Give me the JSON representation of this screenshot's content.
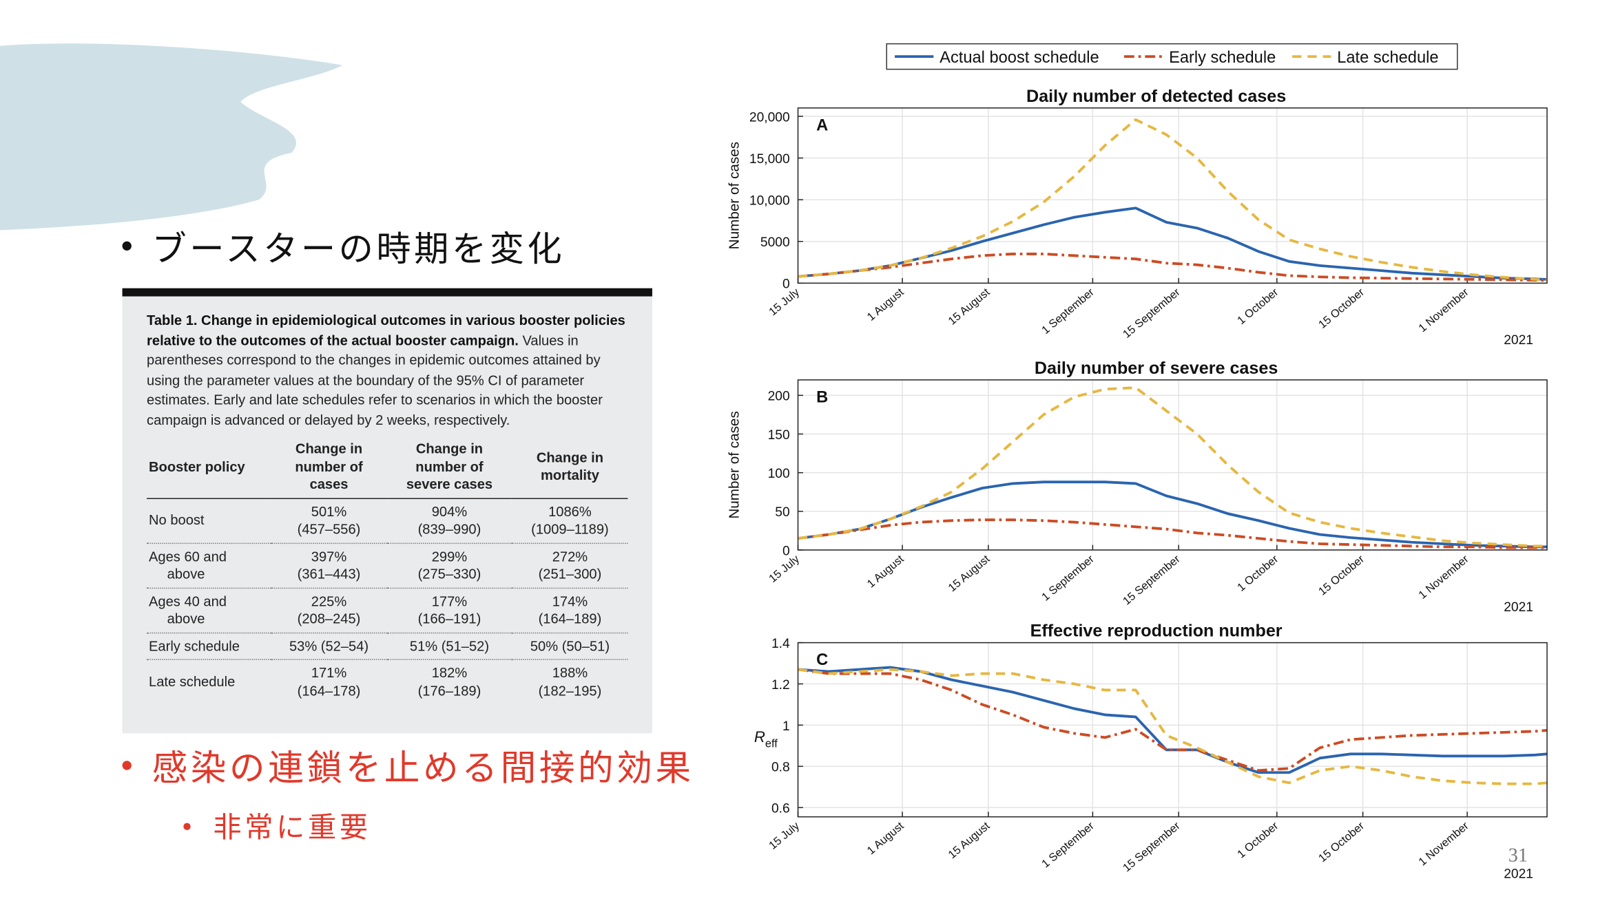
{
  "bullets": [
    "ブースターの時期を変化",
    "感染の連鎖を止める間接的効果",
    "非常に重要"
  ],
  "page_number": "31",
  "table": {
    "caption_bold": "Table 1. Change in epidemiological outcomes in various booster policies relative to the outcomes of the actual booster campaign.",
    "caption": "Values in parentheses correspond to the changes in epidemic outcomes attained by using the parameter values at the boundary of the 95% CI of parameter estimates. Early and late schedules refer to scenarios in which the booster campaign is advanced or delayed by 2 weeks, respectively.",
    "header": [
      [
        "Booster policy"
      ],
      [
        "Change in",
        "number of",
        "cases"
      ],
      [
        "Change in",
        "number of",
        "severe cases"
      ],
      [
        "Change in",
        "mortality"
      ]
    ],
    "rows": [
      [
        [
          "No boost"
        ],
        [
          "501%",
          "(457–556)"
        ],
        [
          "904%",
          "(839–990)"
        ],
        [
          "1086%",
          "(1009–1189)"
        ]
      ],
      [
        [
          "Ages 60 and",
          "above"
        ],
        [
          "397%",
          "(361–443)"
        ],
        [
          "299%",
          "(275–330)"
        ],
        [
          "272%",
          "(251–300)"
        ]
      ],
      [
        [
          "Ages 40 and",
          "above"
        ],
        [
          "225%",
          "(208–245)"
        ],
        [
          "177%",
          "(166–191)"
        ],
        [
          "174%",
          "(164–189)"
        ]
      ],
      [
        [
          "Early schedule"
        ],
        [
          "53% (52–54)"
        ],
        [
          "51% (51–52)"
        ],
        [
          "50% (50–51)"
        ]
      ],
      [
        [
          "Late schedule"
        ],
        [
          "171%",
          "(164–178)"
        ],
        [
          "182%",
          "(176–189)"
        ],
        [
          "188%",
          "(182–195)"
        ]
      ]
    ]
  },
  "chart_data": [
    {
      "type": "line",
      "title": "Daily number of detected cases",
      "panel": "A",
      "ylabel": "Number of cases",
      "year_label": "2021",
      "x": [
        "2021-07-15",
        "2021-07-20",
        "2021-07-25",
        "2021-07-30",
        "2021-08-04",
        "2021-08-09",
        "2021-08-14",
        "2021-08-19",
        "2021-08-24",
        "2021-08-29",
        "2021-09-03",
        "2021-09-08",
        "2021-09-13",
        "2021-09-18",
        "2021-09-23",
        "2021-09-28",
        "2021-10-03",
        "2021-10-08",
        "2021-10-13",
        "2021-10-18",
        "2021-10-23",
        "2021-10-28",
        "2021-11-02",
        "2021-11-07",
        "2021-11-12",
        "2021-11-14"
      ],
      "xlim": [
        "2021-07-15",
        "2021-11-14"
      ],
      "xticks": [
        {
          "value": "2021-07-15",
          "label": "15 July"
        },
        {
          "value": "2021-08-01",
          "label": "1 August"
        },
        {
          "value": "2021-08-15",
          "label": "15 August"
        },
        {
          "value": "2021-09-01",
          "label": "1 September"
        },
        {
          "value": "2021-09-15",
          "label": "15 September"
        },
        {
          "value": "2021-10-01",
          "label": "1 October"
        },
        {
          "value": "2021-10-15",
          "label": "15 October"
        },
        {
          "value": "2021-11-01",
          "label": "1 November"
        }
      ],
      "ylim": [
        0,
        21000
      ],
      "yticks": [
        0,
        5000,
        {
          "value": 10000,
          "label": "10,000"
        },
        {
          "value": 15000,
          "label": "15,000"
        },
        {
          "value": 20000,
          "label": "20,000"
        }
      ],
      "grid": true,
      "series": [
        {
          "name": "Actual boost schedule",
          "color": "#2a64b0",
          "dash": "solid",
          "values": [
            800,
            1100,
            1500,
            2100,
            3000,
            3900,
            5000,
            6000,
            7000,
            7900,
            8500,
            9000,
            7300,
            6600,
            5400,
            3800,
            2600,
            2100,
            1800,
            1500,
            1200,
            1000,
            800,
            600,
            500,
            450
          ]
        },
        {
          "name": "Early schedule",
          "color": "#cc4b23",
          "dash": "dashdot",
          "values": [
            800,
            1100,
            1500,
            1900,
            2400,
            2900,
            3300,
            3500,
            3500,
            3300,
            3100,
            2900,
            2400,
            2200,
            1800,
            1300,
            900,
            750,
            650,
            600,
            550,
            500,
            450,
            400,
            350,
            330
          ]
        },
        {
          "name": "Late schedule",
          "color": "#e6b740",
          "dash": "dashed",
          "values": [
            800,
            1100,
            1500,
            2100,
            3000,
            4200,
            5600,
            7400,
            9700,
            12800,
            16500,
            19600,
            17800,
            15000,
            11000,
            7600,
            5200,
            4100,
            3200,
            2500,
            1900,
            1400,
            1000,
            700,
            450,
            400
          ]
        }
      ]
    },
    {
      "type": "line",
      "title": "Daily number of severe cases",
      "panel": "B",
      "ylabel": "Number of cases",
      "year_label": "2021",
      "x": [
        "2021-07-15",
        "2021-07-20",
        "2021-07-25",
        "2021-07-30",
        "2021-08-04",
        "2021-08-09",
        "2021-08-14",
        "2021-08-19",
        "2021-08-24",
        "2021-08-29",
        "2021-09-03",
        "2021-09-08",
        "2021-09-13",
        "2021-09-18",
        "2021-09-23",
        "2021-09-28",
        "2021-10-03",
        "2021-10-08",
        "2021-10-13",
        "2021-10-18",
        "2021-10-23",
        "2021-10-28",
        "2021-11-02",
        "2021-11-07",
        "2021-11-12",
        "2021-11-14"
      ],
      "xlim": [
        "2021-07-15",
        "2021-11-14"
      ],
      "xticks": [
        {
          "value": "2021-07-15",
          "label": "15 July"
        },
        {
          "value": "2021-08-01",
          "label": "1 August"
        },
        {
          "value": "2021-08-15",
          "label": "15 August"
        },
        {
          "value": "2021-09-01",
          "label": "1 September"
        },
        {
          "value": "2021-09-15",
          "label": "15 September"
        },
        {
          "value": "2021-10-01",
          "label": "1 October"
        },
        {
          "value": "2021-10-15",
          "label": "15 October"
        },
        {
          "value": "2021-11-01",
          "label": "1 November"
        }
      ],
      "ylim": [
        0,
        220
      ],
      "yticks": [
        0,
        50,
        100,
        150,
        200
      ],
      "grid": true,
      "series": [
        {
          "color": "#2a64b0",
          "dash": "solid",
          "values": [
            15,
            20,
            27,
            40,
            55,
            68,
            80,
            86,
            88,
            88,
            88,
            86,
            70,
            60,
            47,
            38,
            28,
            20,
            16,
            13,
            10,
            8,
            6,
            5,
            4,
            4
          ]
        },
        {
          "color": "#cc4b23",
          "dash": "dashdot",
          "values": [
            15,
            20,
            26,
            32,
            36,
            38,
            39,
            39,
            38,
            36,
            33,
            30,
            27,
            22,
            19,
            15,
            11,
            8,
            7,
            6,
            5,
            4,
            4,
            3,
            3,
            3
          ]
        },
        {
          "color": "#e6b740",
          "dash": "dashed",
          "values": [
            15,
            20,
            27,
            40,
            56,
            75,
            105,
            140,
            175,
            198,
            208,
            210,
            180,
            150,
            110,
            75,
            48,
            36,
            28,
            22,
            17,
            12,
            9,
            7,
            5,
            5
          ]
        }
      ]
    },
    {
      "type": "line",
      "title": "Effective reproduction number",
      "panel": "C",
      "ylabel": "R",
      "ylabel_sub": "eff",
      "year_label": "2021",
      "x": [
        "2021-07-15",
        "2021-07-20",
        "2021-07-25",
        "2021-07-30",
        "2021-08-04",
        "2021-08-09",
        "2021-08-14",
        "2021-08-19",
        "2021-08-24",
        "2021-08-29",
        "2021-09-03",
        "2021-09-08",
        "2021-09-13",
        "2021-09-18",
        "2021-09-23",
        "2021-09-28",
        "2021-10-03",
        "2021-10-08",
        "2021-10-13",
        "2021-10-18",
        "2021-10-23",
        "2021-10-28",
        "2021-11-02",
        "2021-11-07",
        "2021-11-12",
        "2021-11-14"
      ],
      "xlim": [
        "2021-07-15",
        "2021-11-14"
      ],
      "xticks": [
        {
          "value": "2021-07-15",
          "label": "15 July"
        },
        {
          "value": "2021-08-01",
          "label": "1 August"
        },
        {
          "value": "2021-08-15",
          "label": "15 August"
        },
        {
          "value": "2021-09-01",
          "label": "1 September"
        },
        {
          "value": "2021-09-15",
          "label": "15 September"
        },
        {
          "value": "2021-10-01",
          "label": "1 October"
        },
        {
          "value": "2021-10-15",
          "label": "15 October"
        },
        {
          "value": "2021-11-01",
          "label": "1 November"
        }
      ],
      "ylim": [
        0.555,
        1.4
      ],
      "yticks": [
        0.6,
        0.8,
        1,
        1.2,
        1.4
      ],
      "grid": true,
      "series": [
        {
          "color": "#2a64b0",
          "dash": "solid",
          "values": [
            1.27,
            1.26,
            1.27,
            1.28,
            1.26,
            1.22,
            1.19,
            1.16,
            1.12,
            1.08,
            1.05,
            1.04,
            0.88,
            0.88,
            0.82,
            0.77,
            0.77,
            0.84,
            0.86,
            0.86,
            0.855,
            0.85,
            0.85,
            0.85,
            0.855,
            0.86
          ]
        },
        {
          "color": "#cc4b23",
          "dash": "dashdot",
          "values": [
            1.27,
            1.25,
            1.25,
            1.25,
            1.22,
            1.17,
            1.1,
            1.05,
            0.99,
            0.96,
            0.94,
            0.98,
            0.88,
            0.88,
            0.83,
            0.78,
            0.79,
            0.89,
            0.93,
            0.94,
            0.95,
            0.955,
            0.96,
            0.965,
            0.97,
            0.975
          ]
        },
        {
          "color": "#e6b740",
          "dash": "dashed",
          "values": [
            1.27,
            1.25,
            1.26,
            1.27,
            1.26,
            1.24,
            1.25,
            1.25,
            1.22,
            1.2,
            1.17,
            1.17,
            0.95,
            0.89,
            0.82,
            0.75,
            0.72,
            0.78,
            0.8,
            0.78,
            0.75,
            0.73,
            0.72,
            0.715,
            0.715,
            0.72
          ]
        }
      ]
    }
  ]
}
